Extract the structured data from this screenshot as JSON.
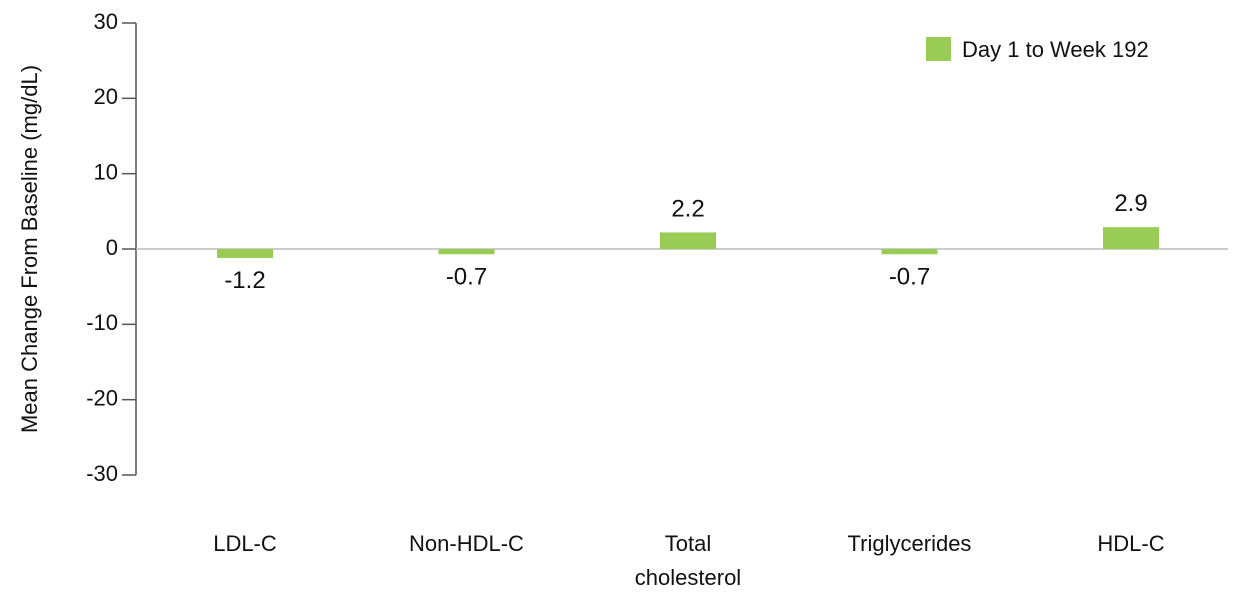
{
  "chart_data": {
    "type": "bar",
    "categories": [
      "LDL-C",
      "Non-HDL-C",
      "Total cholesterol",
      "Triglycerides",
      "HDL-C"
    ],
    "category_lines": [
      [
        "LDL-C"
      ],
      [
        "Non-HDL-C"
      ],
      [
        "Total",
        "cholesterol"
      ],
      [
        "Triglycerides"
      ],
      [
        "HDL-C"
      ]
    ],
    "series": [
      {
        "name": "Day 1 to Week 192",
        "values": [
          -1.2,
          -0.7,
          2.2,
          -0.7,
          2.9
        ],
        "labels": [
          "-1.2",
          "-0.7",
          "2.2",
          "-0.7",
          "2.9"
        ],
        "color": "#99cc55"
      }
    ],
    "ylabel": "Mean Change From Baseline (mg/dL)",
    "xlabel": "",
    "ylim": [
      -30,
      30
    ],
    "yticks": [
      30,
      20,
      10,
      0,
      -10,
      -20,
      -30
    ],
    "grid": false,
    "legend_position": "top-right",
    "zero_line_color": "#bbbbbb",
    "axis_color": "#555555"
  }
}
